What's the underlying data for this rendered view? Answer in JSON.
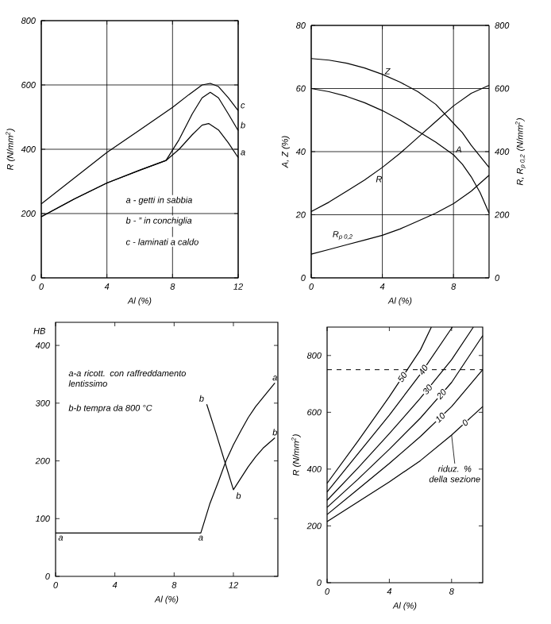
{
  "chart_data": [
    {
      "type": "line",
      "xlabel": "Al (%)",
      "ylabel": "R (N/mm$^{2}$)",
      "xlim": [
        0,
        12
      ],
      "ylim": [
        0,
        800
      ],
      "xticks": [
        0,
        4,
        8,
        12
      ],
      "yticks": [
        0,
        200,
        400,
        600,
        800
      ],
      "grid": true,
      "annotations": [
        "a - getti in sabbia",
        "b - ” in conchiglia",
        "c - laminati a caldo"
      ],
      "series": [
        {
          "name": "c",
          "color": "#000000",
          "x": [
            0,
            2,
            4,
            6,
            8,
            9,
            9.8,
            10.3,
            10.8,
            11.4,
            12
          ],
          "values": [
            230,
            310,
            390,
            460,
            530,
            570,
            600,
            605,
            595,
            560,
            520
          ]
        },
        {
          "name": "b",
          "color": "#000000",
          "x": [
            0,
            2,
            4,
            6,
            7.6,
            8.4,
            9.2,
            9.8,
            10.3,
            10.8,
            11.4,
            12
          ],
          "values": [
            190,
            245,
            295,
            335,
            365,
            430,
            510,
            560,
            577,
            560,
            510,
            458
          ]
        },
        {
          "name": "a",
          "color": "#000000",
          "x": [
            0,
            2,
            4,
            6,
            7.6,
            8.4,
            9.2,
            9.8,
            10.2,
            10.8,
            11.4,
            12
          ],
          "values": [
            190,
            245,
            295,
            335,
            365,
            400,
            445,
            475,
            480,
            460,
            420,
            374
          ]
        }
      ]
    },
    {
      "type": "line",
      "xlabel": "Al (%)",
      "ylabel": "A, Z (%)",
      "y2label": "R, R$_{p 0,2}$ (N/mm$^{2}$)",
      "xlim": [
        0,
        10
      ],
      "ylim": [
        0,
        80
      ],
      "y2lim": [
        0,
        800
      ],
      "xticks": [
        0,
        4,
        8
      ],
      "yticks": [
        0,
        20,
        40,
        60,
        80
      ],
      "y2ticks": [
        0,
        200,
        400,
        600,
        800
      ],
      "grid": true,
      "series": [
        {
          "name": "Z",
          "color": "#000000",
          "x": [
            0,
            1,
            2,
            3,
            4,
            5,
            6,
            7,
            8,
            8.5,
            9,
            9.5,
            10
          ],
          "values": [
            69.5,
            69,
            68,
            66.5,
            64.5,
            62,
            59,
            55,
            49,
            46,
            42,
            38.5,
            35
          ]
        },
        {
          "name": "A",
          "color": "#000000",
          "x": [
            0,
            1,
            2,
            3,
            4,
            5,
            6,
            7,
            8,
            8.5,
            9,
            9.5,
            10
          ],
          "values": [
            60,
            59,
            57.5,
            55.5,
            53,
            50,
            46.5,
            43,
            39,
            36,
            32,
            27,
            20.5
          ]
        },
        {
          "name": "R",
          "axis": "y2",
          "color": "#000000",
          "x": [
            0,
            1,
            2,
            3,
            4,
            5,
            6,
            7,
            8,
            9,
            10
          ],
          "values": [
            210,
            240,
            275,
            310,
            350,
            395,
            445,
            495,
            545,
            585,
            610
          ]
        },
        {
          "name": "R$_{p 0,2}$",
          "axis": "y2",
          "color": "#000000",
          "x": [
            0,
            1,
            2,
            3,
            4,
            5,
            6,
            7,
            8,
            9,
            10
          ],
          "values": [
            75,
            90,
            105,
            120,
            135,
            155,
            180,
            205,
            235,
            275,
            325
          ]
        }
      ]
    },
    {
      "type": "line",
      "xlabel": "Al (%)",
      "ylabel": "HB",
      "xlim": [
        0,
        15
      ],
      "ylim": [
        0,
        440
      ],
      "xticks": [
        0,
        4,
        8,
        12
      ],
      "yticks": [
        0,
        100,
        200,
        300,
        400
      ],
      "grid": false,
      "annotations": [
        "a-a ricott. con raffreddamento lentissimo",
        "b-b tempra da 800 °C",
        {
          "text": "a",
          "x": 0,
          "y": 75
        },
        {
          "text": "a",
          "x": 9.8,
          "y": 75
        },
        {
          "text": "b",
          "x": 10.2,
          "y": 298
        },
        {
          "text": "b",
          "x": 12,
          "y": 150
        }
      ],
      "series": [
        {
          "name": "a",
          "color": "#000000",
          "x": [
            0,
            9.8,
            10.4,
            11,
            11.5,
            12,
            12.5,
            13,
            13.5,
            14,
            14.8
          ],
          "values": [
            75,
            75,
            125,
            165,
            200,
            228,
            252,
            275,
            294,
            310,
            335
          ]
        },
        {
          "name": "b",
          "color": "#000000",
          "x": [
            10.2,
            10.8,
            11.4,
            12,
            12.5,
            13,
            13.5,
            14,
            14.8
          ],
          "values": [
            298,
            250,
            200,
            150,
            170,
            190,
            207,
            222,
            240
          ]
        }
      ]
    },
    {
      "type": "line",
      "xlabel": "Al (%)",
      "ylabel": "R (N/mm$^{2}$)",
      "xlim": [
        0,
        10
      ],
      "ylim": [
        0,
        900
      ],
      "xticks": [
        0,
        4,
        8
      ],
      "yticks": [
        0,
        200,
        400,
        600,
        800
      ],
      "grid": false,
      "ref_lines": [
        {
          "axis": "y",
          "value": 750,
          "line_style": "dashed"
        }
      ],
      "annotations": [
        {
          "text": "riduz. % della sezione",
          "x": 8,
          "y": 520
        }
      ],
      "series": [
        {
          "name": "50",
          "color": "#000000",
          "x": [
            0,
            2,
            4,
            6,
            6.7
          ],
          "values": [
            350,
            500,
            655,
            820,
            900
          ]
        },
        {
          "name": "40",
          "color": "#000000",
          "x": [
            0,
            2,
            4,
            6,
            8.05
          ],
          "values": [
            320,
            455,
            590,
            735,
            900
          ]
        },
        {
          "name": "30",
          "color": "#000000",
          "x": [
            0,
            2,
            4,
            6,
            8,
            9.4
          ],
          "values": [
            290,
            405,
            525,
            650,
            785,
            900
          ]
        },
        {
          "name": "20",
          "color": "#000000",
          "x": [
            0,
            2,
            4,
            6,
            8,
            10
          ],
          "values": [
            265,
            365,
            470,
            580,
            705,
            870
          ]
        },
        {
          "name": "10",
          "color": "#000000",
          "x": [
            0,
            2,
            4,
            6,
            8,
            10
          ],
          "values": [
            240,
            330,
            420,
            515,
            620,
            750
          ]
        },
        {
          "name": "0",
          "color": "#000000",
          "x": [
            0,
            2,
            4,
            6,
            8,
            10
          ],
          "values": [
            215,
            285,
            355,
            430,
            520,
            620
          ]
        }
      ]
    }
  ]
}
